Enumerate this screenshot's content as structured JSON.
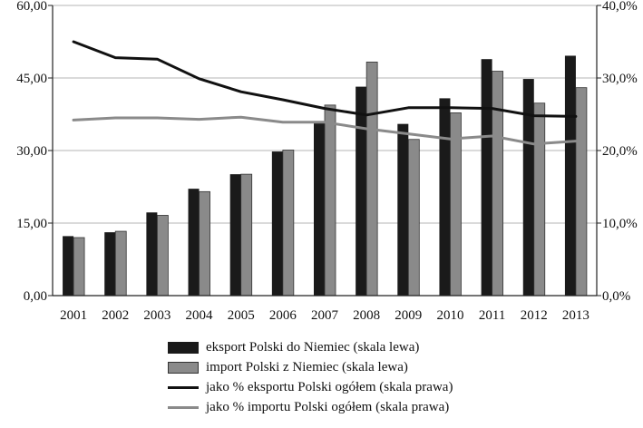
{
  "chart_data": {
    "type": "bar",
    "categories": [
      "2001",
      "2002",
      "2003",
      "2004",
      "2005",
      "2006",
      "2007",
      "2008",
      "2009",
      "2010",
      "2011",
      "2012",
      "2013"
    ],
    "y_left": {
      "lim": [
        0,
        60
      ],
      "ticks": [
        0,
        15,
        30,
        45,
        60
      ],
      "tick_labels": [
        "0,00",
        "15,00",
        "30,00",
        "45,00",
        "60,00"
      ]
    },
    "y_right": {
      "lim": [
        0,
        40
      ],
      "ticks": [
        0,
        10,
        20,
        30,
        40
      ],
      "tick_labels": [
        "0,0%",
        "10,0%",
        "20,0%",
        "30,0%",
        "40,0%"
      ]
    },
    "grid": true,
    "legend_position": "bottom",
    "series": [
      {
        "name": "eksport Polski do Niemiec (skala lewa)",
        "type": "bar",
        "axis": "left",
        "color": "#1a1a1a",
        "values": [
          12.3,
          13.1,
          17.2,
          22.1,
          25.1,
          29.8,
          35.9,
          43.2,
          35.5,
          40.8,
          48.9,
          44.8,
          49.6
        ]
      },
      {
        "name": "import Polski z Niemiec (skala lewa)",
        "type": "bar",
        "axis": "left",
        "color": "#8a8a8a",
        "values": [
          12.0,
          13.3,
          16.6,
          21.5,
          25.1,
          30.1,
          39.4,
          48.3,
          32.3,
          37.8,
          46.4,
          39.8,
          43.0
        ]
      },
      {
        "name": "jako % eksportu Polski ogółem (skala prawa)",
        "type": "line",
        "axis": "right",
        "color": "#111111",
        "values": [
          35.0,
          32.8,
          32.6,
          29.9,
          28.1,
          27.0,
          25.8,
          24.9,
          25.9,
          25.9,
          25.8,
          24.8,
          24.7
        ]
      },
      {
        "name": "jako % importu Polski ogółem (skala prawa)",
        "type": "line",
        "axis": "right",
        "color": "#8a8a8a",
        "values": [
          24.2,
          24.5,
          24.5,
          24.3,
          24.6,
          23.9,
          23.9,
          23.0,
          22.3,
          21.6,
          22.0,
          20.9,
          21.3
        ]
      }
    ]
  }
}
